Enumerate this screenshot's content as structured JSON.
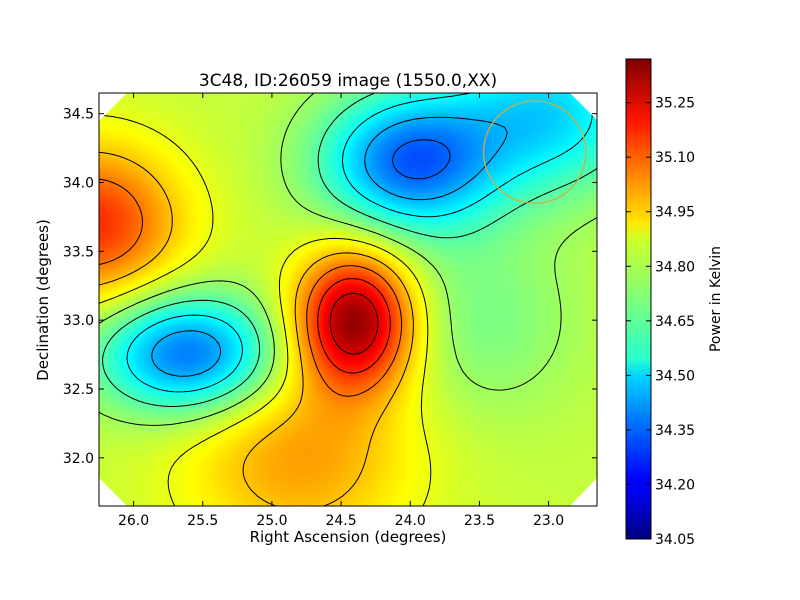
{
  "chart_data": {
    "type": "heatmap",
    "title": "3C48, ID:26059 image (1550.0,XX)",
    "xlabel": "Right Ascension (degrees)",
    "ylabel": "Declination (degrees)",
    "xlim": [
      26.25,
      22.65
    ],
    "ylim": [
      31.65,
      34.65
    ],
    "x_ticks": [
      "26.0",
      "25.5",
      "25.0",
      "24.5",
      "24.0",
      "23.5",
      "23.0"
    ],
    "x_tick_values": [
      26.0,
      25.5,
      25.0,
      24.5,
      24.0,
      23.5,
      23.0
    ],
    "y_ticks": [
      "32.0",
      "32.5",
      "33.0",
      "33.5",
      "34.0",
      "34.5"
    ],
    "y_tick_values": [
      32.0,
      32.5,
      33.0,
      33.5,
      34.0,
      34.5
    ],
    "colorbar": {
      "label": "Power in Kelvin",
      "min": 34.05,
      "max": 35.37,
      "ticks": [
        "34.05",
        "34.20",
        "34.35",
        "34.50",
        "34.65",
        "34.80",
        "34.95",
        "35.10",
        "35.25"
      ],
      "tick_values": [
        34.05,
        34.2,
        34.35,
        34.5,
        34.65,
        34.8,
        34.95,
        35.1,
        35.25
      ],
      "colormap": "jet"
    },
    "features": [
      {
        "kind": "max",
        "ra": 24.4,
        "dec": 33.0,
        "amp": 0.55,
        "sigma_ra": 0.3,
        "sigma_dec": 0.35
      },
      {
        "kind": "max",
        "ra": 26.3,
        "dec": 33.7,
        "amp": 0.35,
        "sigma_ra": 0.45,
        "sigma_dec": 0.4
      },
      {
        "kind": "max",
        "ra": 24.8,
        "dec": 32.0,
        "amp": 0.2,
        "sigma_ra": 0.6,
        "sigma_dec": 0.5
      },
      {
        "kind": "min",
        "ra": 25.6,
        "dec": 32.75,
        "amp": -0.45,
        "sigma_ra": 0.45,
        "sigma_dec": 0.3
      },
      {
        "kind": "min",
        "ra": 24.0,
        "dec": 34.15,
        "amp": -0.45,
        "sigma_ra": 0.45,
        "sigma_dec": 0.35
      },
      {
        "kind": "min",
        "ra": 23.0,
        "dec": 34.5,
        "amp": -0.3,
        "sigma_ra": 0.5,
        "sigma_dec": 0.4
      },
      {
        "kind": "min",
        "ra": 23.5,
        "dec": 33.0,
        "amp": -0.1,
        "sigma_ra": 0.5,
        "sigma_dec": 0.5
      }
    ],
    "base_value": 34.8,
    "beam_circle": {
      "ra": 23.1,
      "dec": 34.22,
      "radius_deg": 0.37,
      "color": "#c9b040"
    },
    "grid": false
  }
}
